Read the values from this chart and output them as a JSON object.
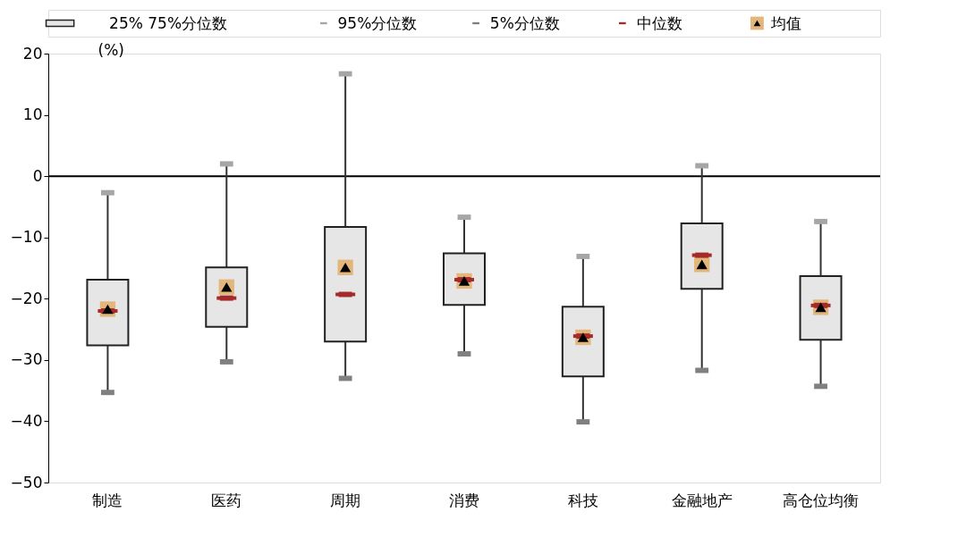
{
  "chart_data": {
    "type": "box",
    "ylabel": "(%)",
    "categories": [
      "制造",
      "医药",
      "周期",
      "消费",
      "科技",
      "金融地产",
      "高仓位均衡"
    ],
    "ylim": [
      -50,
      20
    ],
    "yticks": [
      -50,
      -40,
      -30,
      -20,
      -10,
      0,
      10,
      20
    ],
    "grid": false,
    "legend": "top",
    "ref_lines": [
      {
        "axis": "y",
        "value": 0,
        "color": "#000000"
      }
    ],
    "series": [
      {
        "name": "25% 75%分位数",
        "color": "#e6e6e6",
        "boxes": [
          {
            "low": -35.3,
            "q1": -27.6,
            "median": -22.0,
            "q3": -16.9,
            "high": -2.7
          },
          {
            "low": -30.3,
            "q1": -24.6,
            "median": -19.9,
            "q3": -14.9,
            "high": 2.0
          },
          {
            "low": -33.0,
            "q1": -27.0,
            "median": -19.3,
            "q3": -8.3,
            "high": 16.7
          },
          {
            "low": -29.0,
            "q1": -21.0,
            "median": -16.9,
            "q3": -12.6,
            "high": -6.7
          },
          {
            "low": -40.1,
            "q1": -32.7,
            "median": -26.1,
            "q3": -21.3,
            "high": -13.1
          },
          {
            "low": -31.7,
            "q1": -18.4,
            "median": -12.9,
            "q3": -7.7,
            "high": 1.7
          },
          {
            "low": -34.3,
            "q1": -26.7,
            "median": -21.1,
            "q3": -16.3,
            "high": -7.4
          }
        ]
      },
      {
        "name": "95%分位数",
        "type": "scatter",
        "color": "#a6a6a6",
        "values": [
          -2.7,
          2.0,
          16.7,
          -6.7,
          -13.1,
          1.7,
          -7.4
        ]
      },
      {
        "name": "5%分位数",
        "type": "scatter",
        "color": "#808080",
        "values": [
          -35.3,
          -30.3,
          -33.0,
          -29.0,
          -40.1,
          -31.7,
          -34.3
        ]
      },
      {
        "name": "中位数",
        "type": "scatter",
        "color": "#a52a2a",
        "values": [
          -22.0,
          -19.9,
          -19.3,
          -16.9,
          -26.1,
          -12.9,
          -21.1
        ]
      },
      {
        "name": "均值",
        "type": "scatter",
        "marker": "triangle",
        "color": "#000000",
        "values": [
          -21.7,
          -18.1,
          -14.9,
          -17.1,
          -26.3,
          -14.4,
          -21.4
        ]
      }
    ]
  }
}
